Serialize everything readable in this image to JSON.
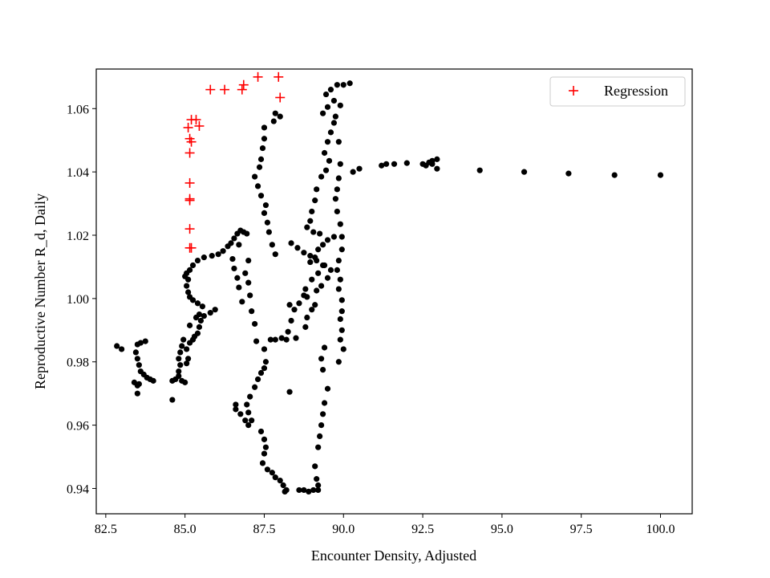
{
  "chart_data": {
    "type": "scatter",
    "title": "",
    "xlabel": "Encounter Density, Adjusted",
    "ylabel": "Reproductive Number R_d, Daily",
    "xlim": [
      82.2,
      101.0
    ],
    "ylim": [
      0.932,
      1.0725
    ],
    "xticks": [
      "82.5",
      "85.0",
      "87.5",
      "90.0",
      "92.5",
      "95.0",
      "97.5",
      "100.0"
    ],
    "yticks": [
      "0.94",
      "0.96",
      "0.98",
      "1.00",
      "1.02",
      "1.04",
      "1.06"
    ],
    "grid": false,
    "legend_position": "top-right",
    "legend": [
      {
        "label": "Regression",
        "marker": "plus",
        "color": "#ff0000"
      }
    ],
    "series": [
      {
        "name": "Regression",
        "marker": "plus",
        "color": "#ff0000",
        "points": [
          [
            85.2,
            1.0565
          ],
          [
            85.35,
            1.0565
          ],
          [
            85.1,
            1.054
          ],
          [
            85.45,
            1.0545
          ],
          [
            85.15,
            1.0505
          ],
          [
            85.2,
            1.0495
          ],
          [
            85.15,
            1.046
          ],
          [
            85.15,
            1.0365
          ],
          [
            85.15,
            1.0315
          ],
          [
            85.15,
            1.031
          ],
          [
            85.15,
            1.022
          ],
          [
            85.15,
            1.016
          ],
          [
            85.2,
            1.016
          ],
          [
            85.8,
            1.066
          ],
          [
            86.25,
            1.066
          ],
          [
            86.8,
            1.066
          ],
          [
            86.85,
            1.0675
          ],
          [
            87.3,
            1.07
          ],
          [
            87.95,
            1.07
          ],
          [
            88.0,
            1.0635
          ]
        ]
      },
      {
        "name": "",
        "marker": "circle",
        "color": "#000000",
        "points": [
          [
            82.85,
            0.985
          ],
          [
            83.0,
            0.984
          ],
          [
            83.4,
            0.9735
          ],
          [
            83.5,
            0.9725
          ],
          [
            83.5,
            0.97
          ],
          [
            83.55,
            0.973
          ],
          [
            83.45,
            0.983
          ],
          [
            83.5,
            0.981
          ],
          [
            83.55,
            0.979
          ],
          [
            83.6,
            0.977
          ],
          [
            83.7,
            0.976
          ],
          [
            83.8,
            0.975
          ],
          [
            83.9,
            0.9745
          ],
          [
            84.0,
            0.974
          ],
          [
            83.5,
            0.9855
          ],
          [
            83.6,
            0.986
          ],
          [
            83.75,
            0.9865
          ],
          [
            84.6,
            0.968
          ],
          [
            84.6,
            0.974
          ],
          [
            84.7,
            0.9745
          ],
          [
            84.8,
            0.9755
          ],
          [
            84.9,
            0.974
          ],
          [
            85.0,
            0.9735
          ],
          [
            84.8,
            0.977
          ],
          [
            84.85,
            0.979
          ],
          [
            84.8,
            0.981
          ],
          [
            84.85,
            0.983
          ],
          [
            84.9,
            0.985
          ],
          [
            84.95,
            0.987
          ],
          [
            85.05,
            0.9795
          ],
          [
            85.1,
            0.981
          ],
          [
            85.05,
            0.984
          ],
          [
            85.15,
            0.986
          ],
          [
            85.25,
            0.987
          ],
          [
            85.3,
            0.988
          ],
          [
            85.4,
            0.989
          ],
          [
            85.45,
            0.991
          ],
          [
            85.5,
            0.993
          ],
          [
            85.45,
            0.995
          ],
          [
            85.35,
            0.994
          ],
          [
            85.15,
            0.9915
          ],
          [
            85.6,
            0.9945
          ],
          [
            85.8,
            0.9955
          ],
          [
            85.95,
            0.9965
          ],
          [
            85.55,
            0.9975
          ],
          [
            85.4,
            0.9985
          ],
          [
            85.25,
            0.9995
          ],
          [
            85.15,
            1.0005
          ],
          [
            85.1,
            1.002
          ],
          [
            85.05,
            1.004
          ],
          [
            85.1,
            1.006
          ],
          [
            85.0,
            1.007
          ],
          [
            85.05,
            1.008
          ],
          [
            85.15,
            1.009
          ],
          [
            85.25,
            1.0105
          ],
          [
            85.4,
            1.012
          ],
          [
            85.6,
            1.013
          ],
          [
            85.85,
            1.0135
          ],
          [
            86.05,
            1.014
          ],
          [
            86.2,
            1.015
          ],
          [
            86.35,
            1.0165
          ],
          [
            86.45,
            1.0175
          ],
          [
            86.55,
            1.019
          ],
          [
            86.65,
            1.0205
          ],
          [
            86.75,
            1.0215
          ],
          [
            86.85,
            1.021
          ],
          [
            86.95,
            1.0205
          ],
          [
            86.7,
            1.017
          ],
          [
            86.5,
            1.0125
          ],
          [
            86.55,
            1.0095
          ],
          [
            86.65,
            1.0065
          ],
          [
            86.7,
            1.0035
          ],
          [
            86.8,
            0.999
          ],
          [
            86.9,
            1.008
          ],
          [
            87.0,
            1.012
          ],
          [
            87.0,
            1.005
          ],
          [
            87.05,
            1.001
          ],
          [
            87.1,
            0.996
          ],
          [
            87.2,
            0.992
          ],
          [
            87.25,
            0.9865
          ],
          [
            87.5,
            0.984
          ],
          [
            87.55,
            0.98
          ],
          [
            87.5,
            0.978
          ],
          [
            87.4,
            0.9765
          ],
          [
            87.3,
            0.9745
          ],
          [
            87.2,
            0.972
          ],
          [
            87.05,
            0.969
          ],
          [
            86.95,
            0.9665
          ],
          [
            87.0,
            0.964
          ],
          [
            86.9,
            0.9615
          ],
          [
            87.0,
            0.96
          ],
          [
            87.1,
            0.9615
          ],
          [
            86.75,
            0.9635
          ],
          [
            86.6,
            0.965
          ],
          [
            86.6,
            0.9665
          ],
          [
            87.4,
            0.958
          ],
          [
            87.5,
            0.9555
          ],
          [
            87.55,
            0.953
          ],
          [
            87.5,
            0.951
          ],
          [
            87.45,
            0.948
          ],
          [
            87.6,
            0.946
          ],
          [
            87.75,
            0.945
          ],
          [
            87.85,
            0.9435
          ],
          [
            88.0,
            0.9425
          ],
          [
            88.1,
            0.941
          ],
          [
            88.15,
            0.939
          ],
          [
            88.2,
            0.9395
          ],
          [
            88.6,
            0.9395
          ],
          [
            88.75,
            0.9395
          ],
          [
            88.9,
            0.939
          ],
          [
            89.05,
            0.9395
          ],
          [
            89.2,
            0.9395
          ],
          [
            89.2,
            0.941
          ],
          [
            89.15,
            0.943
          ],
          [
            89.1,
            0.947
          ],
          [
            89.2,
            0.953
          ],
          [
            89.25,
            0.9565
          ],
          [
            89.3,
            0.96
          ],
          [
            89.35,
            0.9635
          ],
          [
            89.4,
            0.967
          ],
          [
            89.5,
            0.9715
          ],
          [
            89.35,
            0.9775
          ],
          [
            89.3,
            0.981
          ],
          [
            89.4,
            0.9845
          ],
          [
            88.3,
            0.9705
          ],
          [
            87.7,
            0.987
          ],
          [
            87.85,
            0.987
          ],
          [
            88.05,
            0.9875
          ],
          [
            88.2,
            0.987
          ],
          [
            88.5,
            0.9875
          ],
          [
            88.8,
            0.991
          ],
          [
            88.85,
            0.994
          ],
          [
            89.0,
            0.9965
          ],
          [
            89.1,
            0.998
          ],
          [
            88.75,
            1.001
          ],
          [
            88.8,
            1.003
          ],
          [
            89.0,
            1.006
          ],
          [
            89.2,
            1.008
          ],
          [
            89.4,
            1.0105
          ],
          [
            88.95,
            1.0115
          ],
          [
            89.1,
            1.013
          ],
          [
            89.2,
            1.0155
          ],
          [
            89.35,
            1.017
          ],
          [
            89.5,
            1.0185
          ],
          [
            89.7,
            1.0195
          ],
          [
            89.25,
            1.0205
          ],
          [
            89.05,
            1.021
          ],
          [
            88.85,
            1.0225
          ],
          [
            88.95,
            1.0245
          ],
          [
            89.0,
            1.0275
          ],
          [
            89.1,
            1.031
          ],
          [
            89.15,
            1.0345
          ],
          [
            89.3,
            1.0385
          ],
          [
            89.45,
            1.0405
          ],
          [
            89.55,
            1.0435
          ],
          [
            89.4,
            1.046
          ],
          [
            89.5,
            1.0495
          ],
          [
            89.6,
            1.0525
          ],
          [
            89.7,
            1.0555
          ],
          [
            89.75,
            1.0575
          ],
          [
            89.7,
            1.0625
          ],
          [
            89.5,
            1.0605
          ],
          [
            89.35,
            1.0585
          ],
          [
            89.45,
            1.0645
          ],
          [
            89.6,
            1.066
          ],
          [
            89.8,
            1.0675
          ],
          [
            90.0,
            1.0675
          ],
          [
            90.2,
            1.068
          ],
          [
            89.9,
            1.061
          ],
          [
            89.85,
            1.0495
          ],
          [
            89.9,
            1.0425
          ],
          [
            89.85,
            1.038
          ],
          [
            89.8,
            1.0345
          ],
          [
            89.75,
            1.0315
          ],
          [
            89.8,
            1.0275
          ],
          [
            89.9,
            1.0235
          ],
          [
            89.95,
            1.0195
          ],
          [
            89.95,
            1.0155
          ],
          [
            89.85,
            1.012
          ],
          [
            89.8,
            1.009
          ],
          [
            89.9,
            1.006
          ],
          [
            89.85,
            1.003
          ],
          [
            89.95,
            0.9995
          ],
          [
            89.95,
            0.996
          ],
          [
            89.9,
            0.9935
          ],
          [
            89.95,
            0.99
          ],
          [
            89.9,
            0.987
          ],
          [
            90.0,
            0.984
          ],
          [
            89.85,
            0.98
          ],
          [
            90.3,
            1.04
          ],
          [
            90.5,
            1.041
          ],
          [
            91.2,
            1.042
          ],
          [
            91.35,
            1.0425
          ],
          [
            91.6,
            1.0425
          ],
          [
            92.0,
            1.0428
          ],
          [
            92.5,
            1.0425
          ],
          [
            92.7,
            1.043
          ],
          [
            92.8,
            1.0435
          ],
          [
            92.95,
            1.044
          ],
          [
            92.8,
            1.0425
          ],
          [
            92.6,
            1.042
          ],
          [
            92.95,
            1.041
          ],
          [
            94.3,
            1.0405
          ],
          [
            95.7,
            1.04
          ],
          [
            97.1,
            1.0395
          ],
          [
            98.55,
            1.039
          ],
          [
            100.0,
            1.039
          ],
          [
            87.85,
            1.0585
          ],
          [
            88.0,
            1.0575
          ],
          [
            87.8,
            1.056
          ],
          [
            87.5,
            1.054
          ],
          [
            87.5,
            1.0505
          ],
          [
            87.45,
            1.0475
          ],
          [
            87.4,
            1.044
          ],
          [
            87.35,
            1.0415
          ],
          [
            87.2,
            1.0385
          ],
          [
            87.3,
            1.0355
          ],
          [
            87.4,
            1.0325
          ],
          [
            87.55,
            1.0295
          ],
          [
            87.5,
            1.027
          ],
          [
            87.6,
            1.024
          ],
          [
            87.65,
            1.021
          ],
          [
            87.75,
            1.017
          ],
          [
            87.85,
            1.014
          ],
          [
            88.35,
            1.0175
          ],
          [
            88.55,
            1.016
          ],
          [
            88.75,
            1.0145
          ],
          [
            88.95,
            1.0135
          ],
          [
            89.15,
            1.012
          ],
          [
            89.35,
            1.0105
          ],
          [
            89.6,
            1.009
          ],
          [
            89.5,
            1.0065
          ],
          [
            89.3,
            1.004
          ],
          [
            89.15,
            1.0025
          ],
          [
            88.85,
            1.0005
          ],
          [
            88.6,
            0.9985
          ],
          [
            88.45,
            0.9965
          ],
          [
            88.35,
            0.993
          ],
          [
            88.25,
            0.9895
          ],
          [
            88.3,
            0.998
          ]
        ]
      }
    ]
  }
}
